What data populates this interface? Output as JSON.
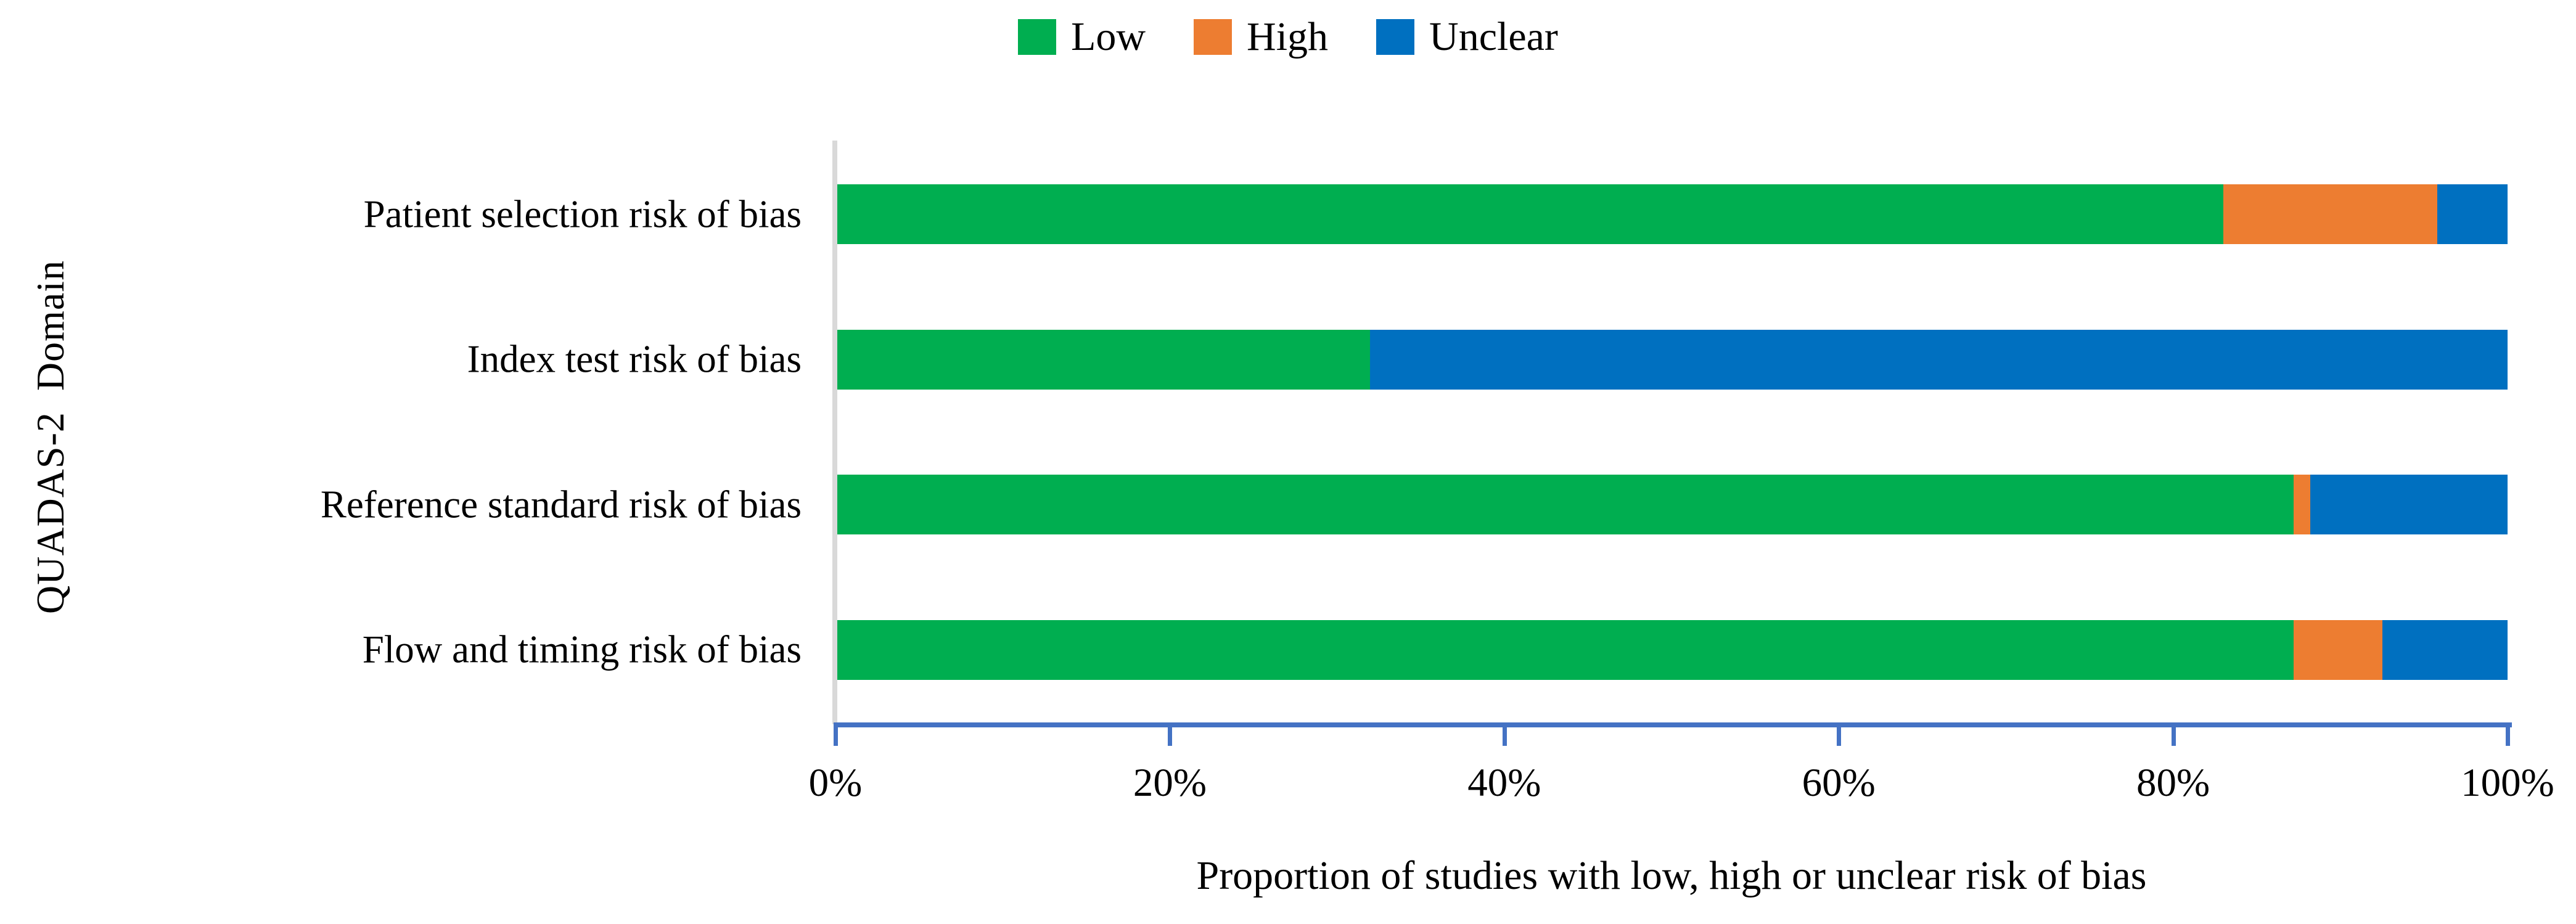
{
  "chart_data": {
    "type": "bar",
    "variant": "horizontal-stacked-100",
    "title": "",
    "xlabel": "Proportion of studies with low, high or unclear risk of bias",
    "ylabel": "QUADAS-2  Domain",
    "categories": [
      "Patient selection risk of bias",
      "Index test risk of bias",
      "Reference standard risk of bias",
      "Flow and timing risk of bias"
    ],
    "series": [
      {
        "name": "Low",
        "color": "#00ae50",
        "values": [
          83.0,
          31.9,
          87.2,
          87.2
        ]
      },
      {
        "name": "High",
        "color": "#ed7d31",
        "values": [
          12.8,
          0.0,
          1.0,
          5.3
        ]
      },
      {
        "name": "Unclear",
        "color": "#0070c0",
        "values": [
          4.2,
          68.1,
          11.8,
          7.5
        ]
      }
    ],
    "xlim": [
      0,
      100
    ],
    "x_ticks": [
      "0%",
      "20%",
      "40%",
      "60%",
      "80%",
      "100%"
    ],
    "legend_position": "top-center",
    "grid": false
  },
  "colors": {
    "background": "#ffffff",
    "text": "#000000",
    "x_axis_line": "#4472c4",
    "y_axis_line": "#d9d9d9"
  }
}
